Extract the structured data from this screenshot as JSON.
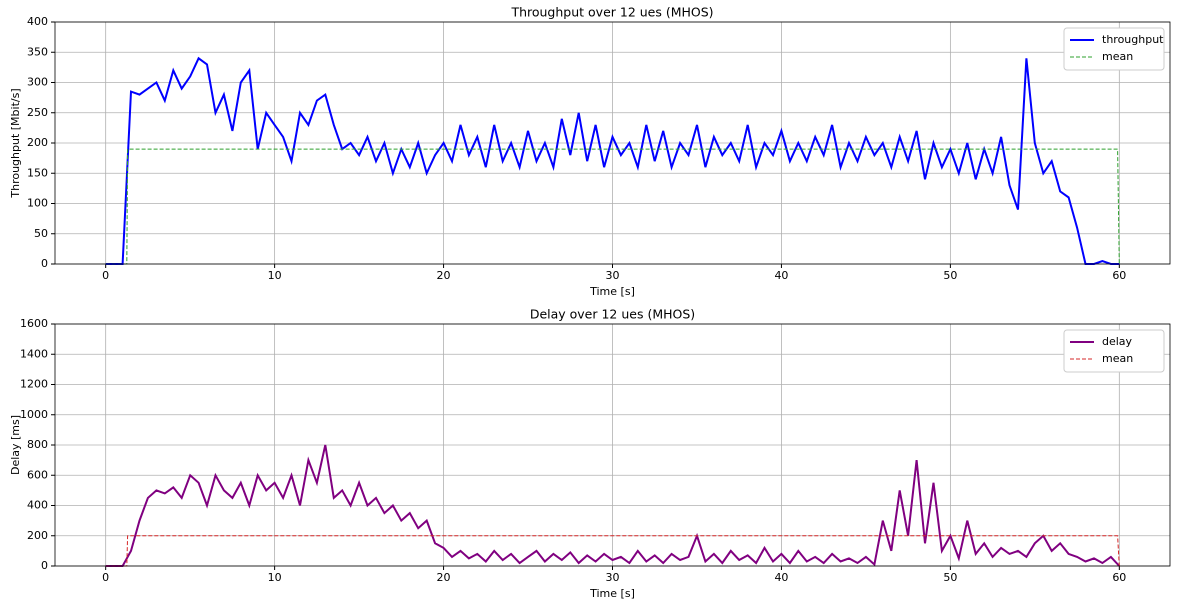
{
  "chart_data": [
    {
      "type": "line",
      "title": "Throughput over 12 ues (MHOS)",
      "xlabel": "Time [s]",
      "ylabel": "Throughput [Mbit/s]",
      "xlim": [
        -3,
        63
      ],
      "ylim": [
        0,
        400
      ],
      "xticks": [
        0,
        10,
        20,
        30,
        40,
        50,
        60
      ],
      "yticks": [
        0,
        50,
        100,
        150,
        200,
        250,
        300,
        350,
        400
      ],
      "grid": true,
      "legend": "upper right",
      "series": [
        {
          "name": "throughput",
          "color": "#0000ff",
          "linestyle": "solid",
          "x": [
            0,
            0.5,
            1,
            1.5,
            2,
            2.5,
            3,
            3.5,
            4,
            4.5,
            5,
            5.5,
            6,
            6.5,
            7,
            7.5,
            8,
            8.5,
            9,
            9.5,
            10,
            10.5,
            11,
            11.5,
            12,
            12.5,
            13,
            13.5,
            14,
            14.5,
            15,
            15.5,
            16,
            16.5,
            17,
            17.5,
            18,
            18.5,
            19,
            19.5,
            20,
            20.5,
            21,
            21.5,
            22,
            22.5,
            23,
            23.5,
            24,
            24.5,
            25,
            25.5,
            26,
            26.5,
            27,
            27.5,
            28,
            28.5,
            29,
            29.5,
            30,
            30.5,
            31,
            31.5,
            32,
            32.5,
            33,
            33.5,
            34,
            34.5,
            35,
            35.5,
            36,
            36.5,
            37,
            37.5,
            38,
            38.5,
            39,
            39.5,
            40,
            40.5,
            41,
            41.5,
            42,
            42.5,
            43,
            43.5,
            44,
            44.5,
            45,
            45.5,
            46,
            46.5,
            47,
            47.5,
            48,
            48.5,
            49,
            49.5,
            50,
            50.5,
            51,
            51.5,
            52,
            52.5,
            53,
            53.5,
            54,
            54.5,
            55,
            55.5,
            56,
            56.5,
            57,
            57.5,
            58,
            58.5,
            59,
            59.5,
            60
          ],
          "values": [
            0,
            0,
            0,
            285,
            280,
            290,
            300,
            270,
            320,
            290,
            310,
            340,
            330,
            250,
            280,
            220,
            300,
            320,
            190,
            250,
            230,
            210,
            170,
            250,
            230,
            270,
            280,
            230,
            190,
            200,
            180,
            210,
            170,
            200,
            150,
            190,
            160,
            200,
            150,
            180,
            200,
            170,
            230,
            180,
            210,
            160,
            230,
            170,
            200,
            160,
            220,
            170,
            200,
            160,
            240,
            180,
            250,
            170,
            230,
            160,
            210,
            180,
            200,
            160,
            230,
            170,
            220,
            160,
            200,
            180,
            230,
            160,
            210,
            180,
            200,
            170,
            230,
            160,
            200,
            180,
            220,
            170,
            200,
            170,
            210,
            180,
            230,
            160,
            200,
            170,
            210,
            180,
            200,
            160,
            210,
            170,
            220,
            140,
            200,
            160,
            190,
            150,
            200,
            140,
            190,
            150,
            210,
            130,
            90,
            340,
            200,
            150,
            170,
            120,
            110,
            60,
            0,
            0,
            5,
            0,
            0
          ]
        },
        {
          "name": "mean",
          "color": "#2ca02c",
          "linestyle": "dashed",
          "x": [
            0,
            1.25,
            1.3,
            59.9,
            60
          ],
          "values": [
            0,
            0,
            190,
            190,
            0
          ]
        }
      ]
    },
    {
      "type": "line",
      "title": "Delay over 12 ues (MHOS)",
      "xlabel": "Time [s]",
      "ylabel": "Delay [ms]",
      "xlim": [
        -3,
        63
      ],
      "ylim": [
        0,
        1600
      ],
      "xticks": [
        0,
        10,
        20,
        30,
        40,
        50,
        60
      ],
      "yticks": [
        0,
        200,
        400,
        600,
        800,
        1000,
        1200,
        1400,
        1600
      ],
      "grid": true,
      "legend": "upper right",
      "series": [
        {
          "name": "delay",
          "color": "#800080",
          "linestyle": "solid",
          "x": [
            0,
            0.5,
            1,
            1.5,
            2,
            2.5,
            3,
            3.5,
            4,
            4.5,
            5,
            5.5,
            6,
            6.5,
            7,
            7.5,
            8,
            8.5,
            9,
            9.5,
            10,
            10.5,
            11,
            11.5,
            12,
            12.5,
            13,
            13.5,
            14,
            14.5,
            15,
            15.5,
            16,
            16.5,
            17,
            17.5,
            18,
            18.5,
            19,
            19.5,
            20,
            20.5,
            21,
            21.5,
            22,
            22.5,
            23,
            23.5,
            24,
            24.5,
            25,
            25.5,
            26,
            26.5,
            27,
            27.5,
            28,
            28.5,
            29,
            29.5,
            30,
            30.5,
            31,
            31.5,
            32,
            32.5,
            33,
            33.5,
            34,
            34.5,
            35,
            35.5,
            36,
            36.5,
            37,
            37.5,
            38,
            38.5,
            39,
            39.5,
            40,
            40.5,
            41,
            41.5,
            42,
            42.5,
            43,
            43.5,
            44,
            44.5,
            45,
            45.5,
            46,
            46.5,
            47,
            47.5,
            48,
            48.5,
            49,
            49.5,
            50,
            50.5,
            51,
            51.5,
            52,
            52.5,
            53,
            53.5,
            54,
            54.5,
            55,
            55.5,
            56,
            56.5,
            57,
            57.5,
            58,
            58.5,
            59,
            59.5,
            60
          ],
          "values": [
            0,
            0,
            0,
            100,
            300,
            450,
            500,
            480,
            520,
            450,
            600,
            550,
            400,
            600,
            500,
            450,
            550,
            400,
            600,
            500,
            550,
            450,
            600,
            400,
            700,
            550,
            800,
            450,
            500,
            400,
            550,
            400,
            450,
            350,
            400,
            300,
            350,
            250,
            300,
            150,
            120,
            60,
            100,
            50,
            80,
            30,
            100,
            40,
            80,
            20,
            60,
            100,
            30,
            80,
            40,
            90,
            20,
            70,
            30,
            80,
            40,
            60,
            20,
            100,
            30,
            70,
            20,
            80,
            40,
            60,
            200,
            30,
            80,
            20,
            100,
            40,
            70,
            20,
            120,
            30,
            80,
            20,
            100,
            30,
            60,
            20,
            80,
            30,
            50,
            20,
            60,
            10,
            300,
            100,
            500,
            200,
            700,
            150,
            550,
            100,
            200,
            50,
            300,
            80,
            150,
            60,
            120,
            80,
            100,
            60,
            150,
            200,
            100,
            150,
            80,
            60,
            30,
            50,
            20,
            60,
            0
          ]
        },
        {
          "name": "mean",
          "color": "#d62728",
          "linestyle": "dashed",
          "x": [
            0,
            1.25,
            1.3,
            59.9,
            60
          ],
          "values": [
            0,
            0,
            200,
            200,
            0
          ]
        }
      ]
    }
  ]
}
